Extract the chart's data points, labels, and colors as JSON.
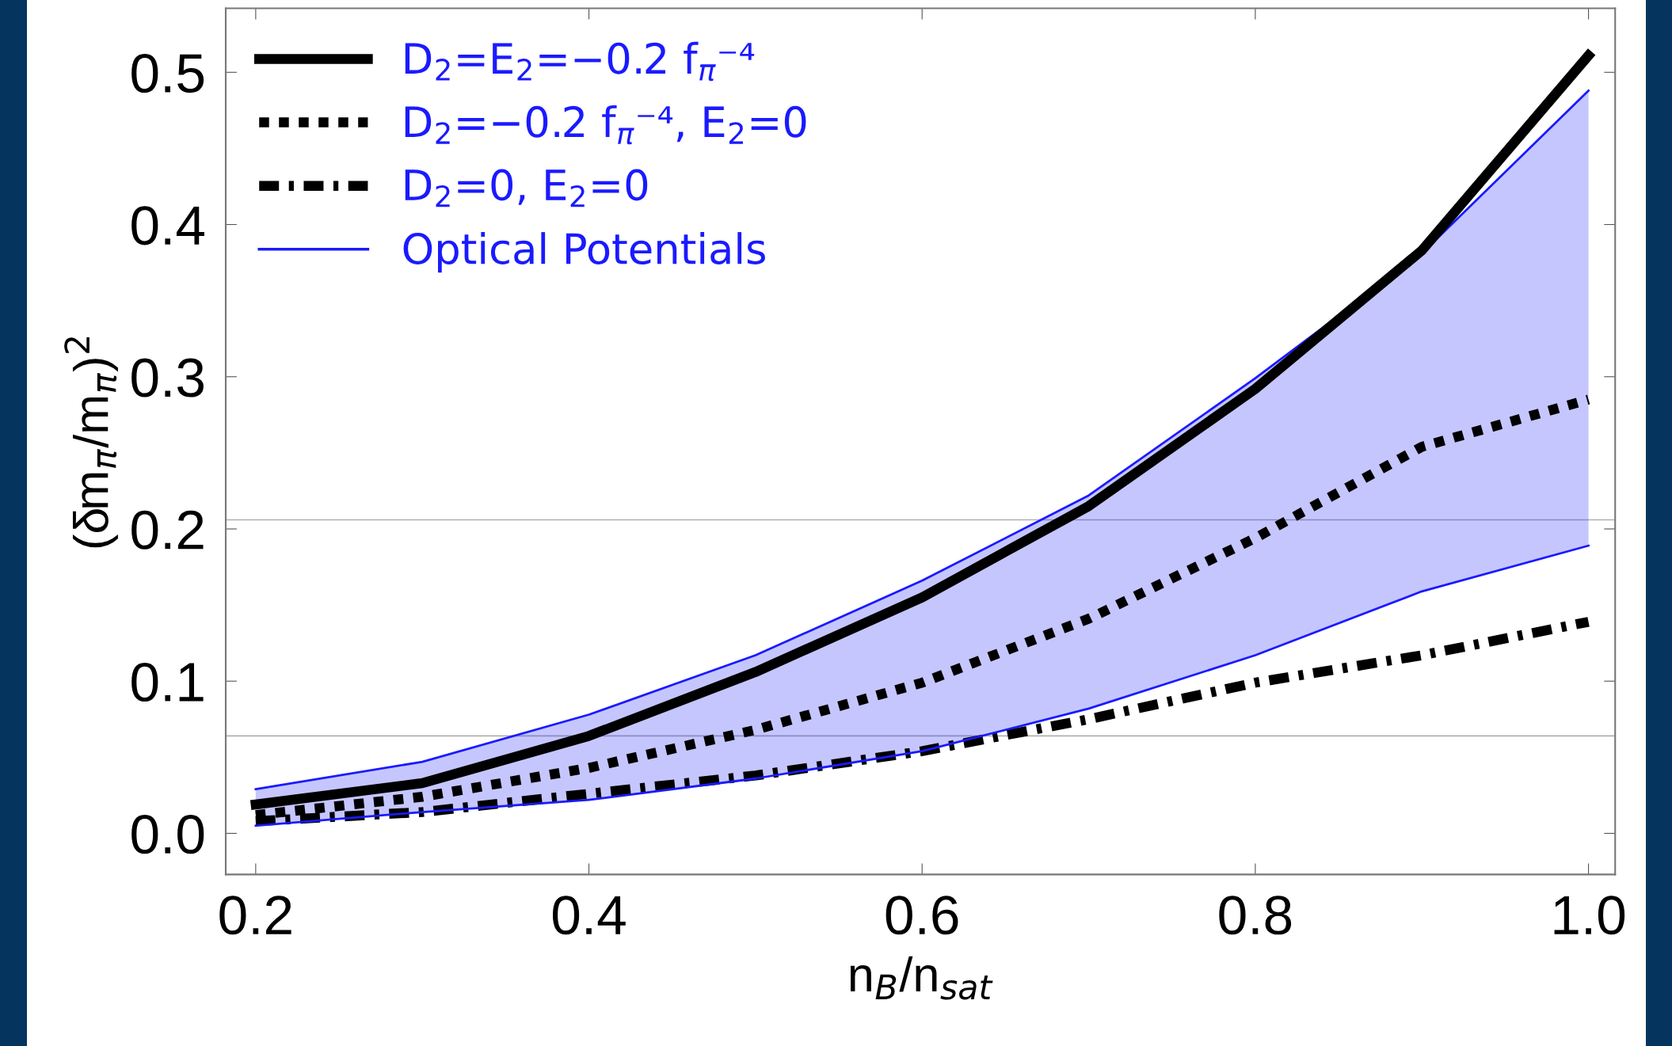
{
  "chart_data": {
    "type": "line",
    "xlabel": "n$_{B}$/n$_{sat}$",
    "ylabel": "(δm$_{π}$/m$_{π}$)$^{2}$",
    "x": [
      0.2,
      0.3,
      0.4,
      0.5,
      0.6,
      0.7,
      0.8,
      0.9,
      1.0
    ],
    "series": [
      {
        "name": "D$_{2}$=E$_{2}$=−0.2 f$_{π}$⁻⁴",
        "color": "#000000",
        "line_style": "solid",
        "values": [
          0.019,
          0.033,
          0.064,
          0.106,
          0.155,
          0.215,
          0.292,
          0.383,
          0.511
        ]
      },
      {
        "name": "D$_{2}$=−0.2 f$_{π}$⁻⁴, E$_{2}$=0",
        "color": "#000000",
        "line_style": "dotted",
        "values": [
          0.012,
          0.024,
          0.043,
          0.068,
          0.099,
          0.141,
          0.194,
          0.254,
          0.285
        ]
      },
      {
        "name": "D$_{2}$=0, E$_{2}$=0",
        "color": "#000000",
        "line_style": "dashdot",
        "values": [
          0.008,
          0.014,
          0.026,
          0.038,
          0.054,
          0.075,
          0.099,
          0.117,
          0.139
        ]
      },
      {
        "name": "Optical Potentials",
        "color": "#1a1aff",
        "line_style": "solid",
        "values": [
          0.029,
          0.047,
          0.078,
          0.117,
          0.166,
          0.222,
          0.299,
          0.381,
          0.488
        ],
        "lower": [
          0.005,
          0.014,
          0.022,
          0.036,
          0.054,
          0.082,
          0.117,
          0.159,
          0.189
        ],
        "upper": [
          0.029,
          0.047,
          0.078,
          0.117,
          0.166,
          0.222,
          0.299,
          0.381,
          0.488
        ]
      },
      {
        "color": "#1a1aff",
        "line_style": "solid",
        "values": [
          0.005,
          0.014,
          0.022,
          0.036,
          0.054,
          0.082,
          0.117,
          0.159,
          0.189
        ]
      }
    ],
    "ref_lines": [
      {
        "axis": "y",
        "value": 0.206,
        "color": "#b0b0b0"
      },
      {
        "axis": "y",
        "value": 0.064,
        "color": "#b0b0b0"
      }
    ],
    "xlim": [
      0.182,
      1.016
    ],
    "ylim": [
      -0.027,
      0.542
    ],
    "xticks": [
      {
        "value": 0.2,
        "label": "0.2"
      },
      {
        "value": 0.4,
        "label": "0.4"
      },
      {
        "value": 0.6,
        "label": "0.6"
      },
      {
        "value": 0.8,
        "label": "0.8"
      },
      {
        "value": 1.0,
        "label": "1.0"
      }
    ],
    "yticks": [
      {
        "value": 0.0,
        "label": "0.0"
      },
      0.1,
      0.2,
      0.3,
      0.4,
      0.5
    ],
    "legend": "top left",
    "grid": false
  }
}
